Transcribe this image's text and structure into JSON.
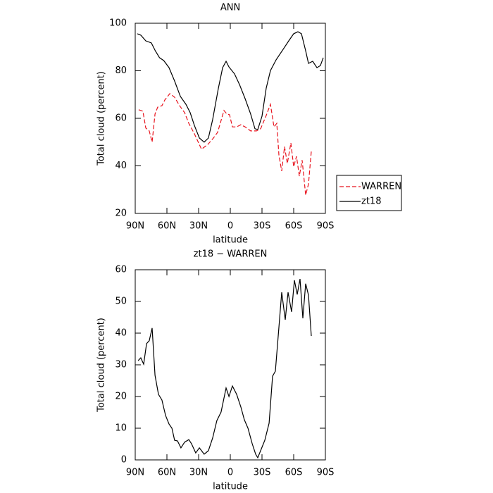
{
  "chart_data": [
    {
      "type": "line",
      "title": "ANN",
      "xlabel": "latitude",
      "ylabel": "Total cloud (percent)",
      "xlim": [
        90,
        -90
      ],
      "xticks": [
        {
          "value": 90,
          "label": "90N"
        },
        {
          "value": 60,
          "label": "60N"
        },
        {
          "value": 30,
          "label": "30N"
        },
        0,
        {
          "value": -30,
          "label": "30S"
        },
        {
          "value": -60,
          "label": "60S"
        },
        {
          "value": -90,
          "label": "90S"
        }
      ],
      "ylim": [
        20,
        100
      ],
      "yticks": [
        20,
        40,
        60,
        80,
        100
      ],
      "legend": "right",
      "series": [
        {
          "name": "WARREN",
          "color": "#e8141e",
          "linestyle": "dashed",
          "x": [
            86.7,
            82.7,
            80,
            76.7,
            74,
            71.3,
            68.7,
            64.7,
            62,
            57.3,
            52.7,
            48,
            43.3,
            39.3,
            34,
            27.3,
            21.3,
            16,
            12,
            6,
            3.3,
            0.7,
            -2,
            -6,
            -10,
            -14,
            -19.3,
            -24.7,
            -28.7,
            -34,
            -38,
            -41.3,
            -44,
            -46,
            -48.7,
            -51.3,
            -54,
            -57.3,
            -60,
            -62.7,
            -65.3,
            -68,
            -71.3,
            -74,
            -76.7
          ],
          "values": [
            63.6,
            63,
            55.9,
            54.7,
            50,
            61.8,
            64.7,
            65.3,
            67.7,
            70.4,
            68.9,
            65.3,
            62.4,
            57.9,
            53.5,
            47,
            49,
            51.7,
            54.1,
            63.3,
            61.8,
            61.5,
            56.4,
            56.4,
            57.3,
            56.4,
            54.7,
            54.7,
            55.6,
            61.2,
            65.9,
            56.4,
            57.9,
            44.6,
            37.8,
            48.1,
            41,
            49.6,
            39.6,
            44,
            35.7,
            42.4,
            27.7,
            32.3,
            46.1
          ]
        },
        {
          "name": "zt18",
          "color": "#000000",
          "linestyle": "solid",
          "x": [
            88,
            84.7,
            80,
            74.7,
            71,
            67,
            63,
            58,
            52.7,
            47.3,
            42,
            38,
            34,
            29.3,
            24.7,
            20.7,
            16.7,
            11.3,
            7.3,
            4,
            1.3,
            -4,
            -8.7,
            -14,
            -19.3,
            -23.3,
            -26,
            -30,
            -34,
            -38,
            -43.3,
            -50,
            -55.3,
            -60,
            -64,
            -67.3,
            -71.3,
            -74,
            -78,
            -82,
            -85.3,
            -88
          ],
          "values": [
            95.6,
            95,
            92.6,
            91.7,
            88.4,
            85.5,
            84.3,
            81.3,
            75.7,
            69.2,
            65.9,
            62.4,
            57,
            51.7,
            50,
            51.7,
            59.4,
            72.7,
            81.3,
            84,
            81.6,
            78.7,
            74.2,
            68.3,
            61.8,
            55.6,
            55.3,
            60.9,
            72.7,
            80.1,
            84.6,
            89,
            92.6,
            95.6,
            96.4,
            95.6,
            88.4,
            83.1,
            84,
            81.3,
            82.2,
            85.5
          ]
        }
      ]
    },
    {
      "type": "line",
      "title": "zt18 − WARREN",
      "xlabel": "latitude",
      "ylabel": "Total cloud (percent)",
      "xlim": [
        90,
        -90
      ],
      "xticks": [
        {
          "value": 90,
          "label": "90N"
        },
        {
          "value": 60,
          "label": "60N"
        },
        {
          "value": 30,
          "label": "30N"
        },
        0,
        {
          "value": -30,
          "label": "30S"
        },
        {
          "value": -60,
          "label": "60S"
        },
        {
          "value": -90,
          "label": "90S"
        }
      ],
      "ylim": [
        0,
        60
      ],
      "yticks": [
        0,
        10,
        20,
        30,
        40,
        50,
        60
      ],
      "series": [
        {
          "color": "#000000",
          "linestyle": "solid",
          "x": [
            87.3,
            84.7,
            82,
            79.3,
            76.7,
            74,
            71.3,
            68,
            64.7,
            61.3,
            58,
            55.3,
            52.7,
            50,
            46.7,
            43.3,
            39.3,
            36.7,
            32.7,
            29.3,
            24.7,
            20.7,
            16.7,
            12.7,
            8.7,
            4,
            1.3,
            -2,
            -6,
            -10,
            -13.3,
            -16.7,
            -20.7,
            -24,
            -26,
            -30,
            -32.7,
            -36.7,
            -40,
            -42.7,
            -46,
            -48.7,
            -52,
            -54.7,
            -58,
            -60.7,
            -63.3,
            -66,
            -68.7,
            -71.3,
            -74,
            -76.7
          ],
          "values": [
            31.3,
            32.2,
            30.2,
            36.7,
            37.6,
            41.6,
            26.7,
            20.7,
            18.9,
            14,
            11.3,
            10,
            6.2,
            6,
            3.8,
            5.6,
            6.4,
            5.1,
            2.2,
            3.8,
            1.8,
            2.9,
            6.9,
            12.4,
            15.1,
            22.7,
            20,
            23.3,
            20.7,
            16.7,
            12.7,
            10,
            5.1,
            1.8,
            0.7,
            4,
            6.2,
            11.6,
            26.4,
            28,
            41.8,
            52.9,
            44.2,
            52.9,
            46.7,
            56.7,
            52.2,
            57.1,
            44.7,
            55.6,
            52,
            39.1
          ]
        }
      ]
    }
  ]
}
